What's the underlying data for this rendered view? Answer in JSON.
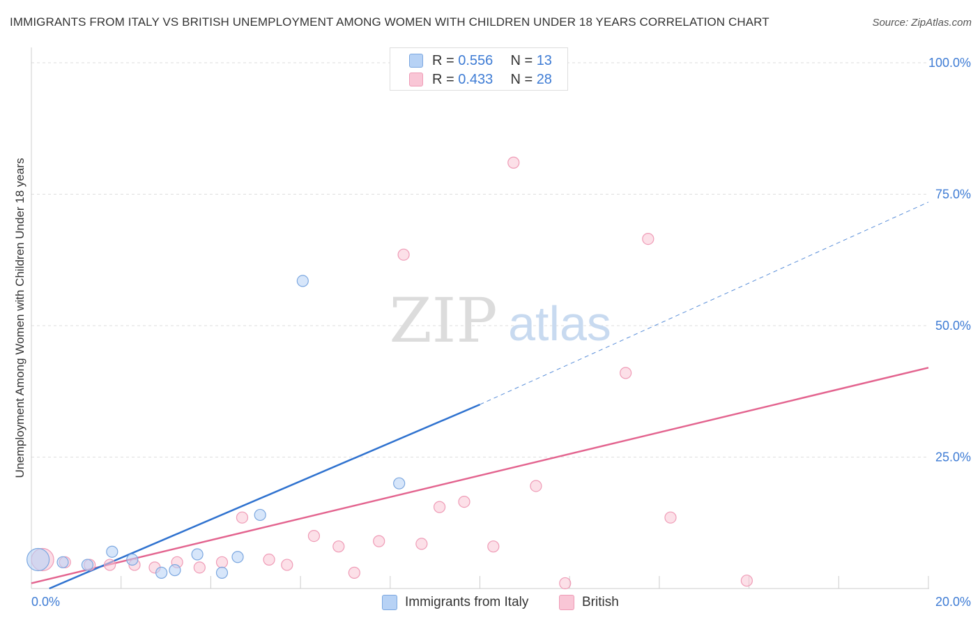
{
  "title": "IMMIGRANTS FROM ITALY VS BRITISH UNEMPLOYMENT AMONG WOMEN WITH CHILDREN UNDER 18 YEARS CORRELATION CHART",
  "source": "Source: ZipAtlas.com",
  "watermark": {
    "zip": "ZIP",
    "atlas": "atlas"
  },
  "legend": {
    "rows": [
      {
        "r_label": "R =",
        "r_value": "0.556",
        "n_label": "N =",
        "n_value": "13"
      },
      {
        "r_label": "R =",
        "r_value": "0.433",
        "n_label": "N =",
        "n_value": "28"
      }
    ],
    "bottom": [
      "Immigrants from Italy",
      "British"
    ]
  },
  "colors": {
    "italy_fill": "#b7d2f5",
    "italy_stroke": "#7ba7e0",
    "italy_line": "#2f72cf",
    "british_fill": "#f9c6d6",
    "british_stroke": "#ef9bb6",
    "british_line": "#e3648f",
    "axis_text": "#3d7bd4",
    "grid": "#dddddd"
  },
  "chart_data": {
    "type": "scatter",
    "title": "IMMIGRANTS FROM ITALY VS BRITISH UNEMPLOYMENT AMONG WOMEN WITH CHILDREN UNDER 18 YEARS CORRELATION CHART",
    "xlabel": "",
    "ylabel": "Unemployment Among Women with Children Under 18 years",
    "xlim": [
      0,
      20
    ],
    "ylim": [
      0,
      100
    ],
    "x_tick_labels": [
      "0.0%",
      "20.0%"
    ],
    "y_ticks": [
      25,
      50,
      75,
      100
    ],
    "y_tick_labels": [
      "25.0%",
      "50.0%",
      "75.0%",
      "100.0%"
    ],
    "grid": true,
    "legend_position": "top-center",
    "series": [
      {
        "name": "Immigrants from Italy",
        "R": 0.556,
        "N": 13,
        "points": [
          {
            "x": 0.15,
            "y": 5.5,
            "big": true
          },
          {
            "x": 0.7,
            "y": 5.0
          },
          {
            "x": 1.25,
            "y": 4.5
          },
          {
            "x": 1.8,
            "y": 7.0
          },
          {
            "x": 2.25,
            "y": 5.5
          },
          {
            "x": 2.9,
            "y": 3.0
          },
          {
            "x": 3.2,
            "y": 3.5
          },
          {
            "x": 3.7,
            "y": 6.5
          },
          {
            "x": 4.25,
            "y": 3.0
          },
          {
            "x": 4.6,
            "y": 6.0
          },
          {
            "x": 5.1,
            "y": 14.0
          },
          {
            "x": 6.05,
            "y": 58.5
          },
          {
            "x": 8.2,
            "y": 20.0
          }
        ],
        "trend": {
          "x0": 0.4,
          "y0": 0.0,
          "x1": 10.0,
          "y1": 35.0
        },
        "trend_extension": {
          "x0": 10.0,
          "y0": 35.0,
          "x1": 20.0,
          "y1": 73.5
        }
      },
      {
        "name": "British",
        "R": 0.433,
        "N": 28,
        "points": [
          {
            "x": 0.25,
            "y": 5.5,
            "big": true
          },
          {
            "x": 0.75,
            "y": 5.0
          },
          {
            "x": 1.3,
            "y": 4.5
          },
          {
            "x": 1.75,
            "y": 4.5
          },
          {
            "x": 2.3,
            "y": 4.5
          },
          {
            "x": 2.75,
            "y": 4.0
          },
          {
            "x": 3.25,
            "y": 5.0
          },
          {
            "x": 3.75,
            "y": 4.0
          },
          {
            "x": 4.25,
            "y": 5.0
          },
          {
            "x": 4.7,
            "y": 13.5
          },
          {
            "x": 5.3,
            "y": 5.5
          },
          {
            "x": 5.7,
            "y": 4.5
          },
          {
            "x": 6.3,
            "y": 10.0
          },
          {
            "x": 6.85,
            "y": 8.0
          },
          {
            "x": 7.2,
            "y": 3.0
          },
          {
            "x": 7.75,
            "y": 9.0
          },
          {
            "x": 8.3,
            "y": 63.5
          },
          {
            "x": 8.7,
            "y": 8.5
          },
          {
            "x": 9.1,
            "y": 15.5
          },
          {
            "x": 9.65,
            "y": 16.5
          },
          {
            "x": 10.3,
            "y": 8.0
          },
          {
            "x": 10.75,
            "y": 81.0
          },
          {
            "x": 11.25,
            "y": 19.5
          },
          {
            "x": 11.9,
            "y": 1.0
          },
          {
            "x": 13.25,
            "y": 41.0
          },
          {
            "x": 13.75,
            "y": 66.5
          },
          {
            "x": 14.25,
            "y": 13.5
          },
          {
            "x": 15.95,
            "y": 1.5
          }
        ],
        "trend": {
          "x0": 0.0,
          "y0": 1.0,
          "x1": 20.0,
          "y1": 42.0
        }
      }
    ]
  }
}
